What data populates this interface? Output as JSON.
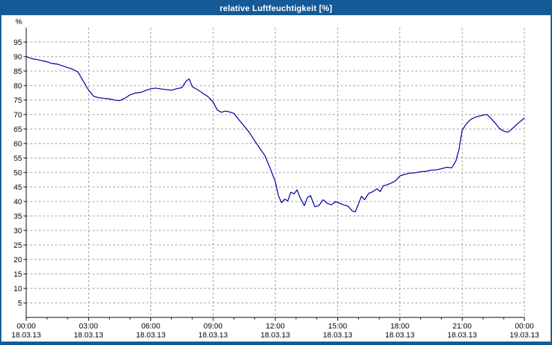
{
  "window": {
    "title": "relative Luftfeuchtigkeit [%]"
  },
  "colors": {
    "title_bar": "#155a96",
    "border": "#155a96",
    "line": "#0000A0",
    "grid": "#999999",
    "axis": "#000000",
    "label_text": "#000000",
    "plot_background": "#ffffff"
  },
  "chart_data": {
    "type": "line",
    "title": "relative Luftfeuchtigkeit [%]",
    "ylabel": "%",
    "xlabel": "",
    "ylim": [
      0,
      100
    ],
    "xlim_hours": [
      0,
      24
    ],
    "grid": "dashed",
    "legend": "none",
    "y_ticks": [
      5,
      10,
      15,
      20,
      25,
      30,
      35,
      40,
      45,
      50,
      55,
      60,
      65,
      70,
      75,
      80,
      85,
      90,
      95
    ],
    "x_ticks": [
      {
        "hour": 0,
        "time": "00:00",
        "date": "18.03.13"
      },
      {
        "hour": 3,
        "time": "03:00",
        "date": "18.03.13"
      },
      {
        "hour": 6,
        "time": "06:00",
        "date": "18.03.13"
      },
      {
        "hour": 9,
        "time": "09:00",
        "date": "18.03.13"
      },
      {
        "hour": 12,
        "time": "12:00",
        "date": "18.03.13"
      },
      {
        "hour": 15,
        "time": "15:00",
        "date": "18.03.13"
      },
      {
        "hour": 18,
        "time": "18:00",
        "date": "18.03.13"
      },
      {
        "hour": 21,
        "time": "21:00",
        "date": "18.03.13"
      },
      {
        "hour": 24,
        "time": "00:00",
        "date": "19.03.13"
      }
    ],
    "series": [
      {
        "name": "relative Luftfeuchtigkeit",
        "x": [
          0,
          0.25,
          0.5,
          0.75,
          1,
          1.25,
          1.5,
          1.75,
          2,
          2.25,
          2.5,
          2.75,
          3,
          3.25,
          3.5,
          3.75,
          4,
          4.25,
          4.5,
          4.75,
          5,
          5.25,
          5.5,
          5.75,
          6,
          6.25,
          6.5,
          6.75,
          7,
          7.25,
          7.5,
          7.7,
          7.85,
          8,
          8.25,
          8.5,
          8.75,
          9,
          9.2,
          9.4,
          9.6,
          9.8,
          10,
          10.25,
          10.5,
          10.75,
          11,
          11.25,
          11.5,
          11.75,
          12,
          12.15,
          12.3,
          12.45,
          12.6,
          12.75,
          12.9,
          13.05,
          13.2,
          13.4,
          13.55,
          13.7,
          13.9,
          14.1,
          14.3,
          14.5,
          14.7,
          14.9,
          15.1,
          15.3,
          15.5,
          15.7,
          15.85,
          16,
          16.15,
          16.3,
          16.5,
          16.7,
          16.9,
          17.05,
          17.2,
          17.4,
          17.6,
          17.8,
          18,
          18.25,
          18.5,
          18.75,
          19,
          19.25,
          19.5,
          19.75,
          20,
          20.25,
          20.5,
          20.7,
          20.85,
          21,
          21.2,
          21.4,
          21.6,
          21.8,
          22,
          22.2,
          22.4,
          22.6,
          22.8,
          23,
          23.2,
          23.4,
          23.6,
          23.8,
          24
        ],
        "y": [
          90,
          89.3,
          89,
          88.6,
          88.2,
          87.6,
          87.4,
          86.8,
          86.2,
          85.6,
          84.6,
          81.5,
          78.5,
          76.3,
          75.8,
          75.6,
          75.4,
          75,
          74.8,
          75.6,
          76.8,
          77.4,
          77.6,
          78.3,
          78.9,
          79.1,
          78.8,
          78.6,
          78.4,
          78.9,
          79.3,
          81.5,
          82.3,
          79.6,
          78.6,
          77.4,
          76.2,
          74.4,
          71.6,
          70.8,
          71.2,
          70.9,
          70.4,
          68.2,
          66,
          63.8,
          61,
          58.4,
          55.8,
          51.5,
          46.8,
          42,
          39.6,
          40.8,
          40.2,
          43.2,
          42.6,
          44,
          41.2,
          38.6,
          41.4,
          42,
          38.2,
          38.6,
          40.6,
          39.4,
          38.8,
          40,
          39.4,
          38.8,
          38.4,
          36.8,
          36.4,
          39,
          41.8,
          40.6,
          42.8,
          43.4,
          44.4,
          43.4,
          45.4,
          45.8,
          46.4,
          47.2,
          48.8,
          49.4,
          49.8,
          49.9,
          50.3,
          50.4,
          50.8,
          50.9,
          51.3,
          51.8,
          51.6,
          54,
          58,
          64.5,
          66.8,
          68.2,
          69,
          69.4,
          69.8,
          70,
          68.6,
          67,
          65.2,
          64.3,
          63.9,
          65,
          66.4,
          67.6,
          68.8
        ]
      }
    ]
  }
}
